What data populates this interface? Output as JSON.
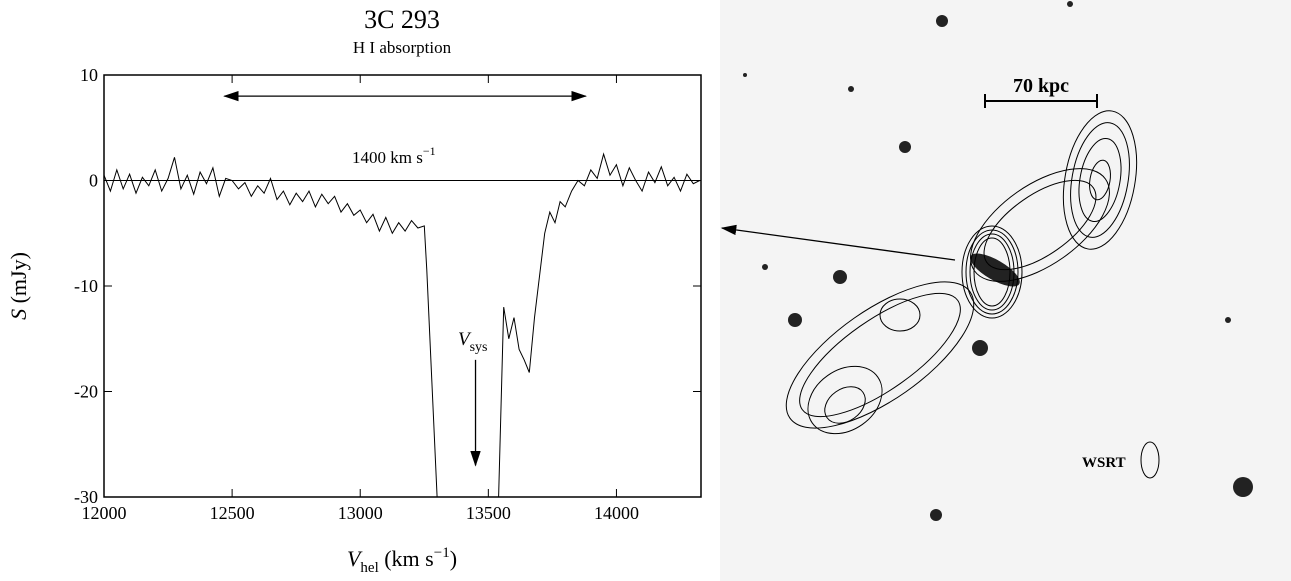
{
  "chart_data": {
    "type": "line",
    "title": "3C 293",
    "subtitle": "H I absorption",
    "y_label": {
      "main": "S",
      "rest": " (mJy)"
    },
    "x_label": {
      "main": "V",
      "sub": "hel",
      "rest": " (km s",
      "sup": "−1",
      "end": ")"
    },
    "annotations": {
      "width": {
        "main": "1400 km s",
        "sup": "−1"
      },
      "vsys": {
        "main": "V",
        "sub": "sys"
      }
    },
    "color": "#000000",
    "x": [
      12000,
      12025,
      12050,
      12075,
      12100,
      12125,
      12150,
      12175,
      12200,
      12225,
      12250,
      12275,
      12300,
      12325,
      12350,
      12375,
      12400,
      12425,
      12450,
      12475,
      12500,
      12525,
      12550,
      12575,
      12600,
      12625,
      12650,
      12675,
      12700,
      12725,
      12750,
      12775,
      12800,
      12825,
      12850,
      12875,
      12900,
      12925,
      12950,
      12975,
      13000,
      13025,
      13050,
      13075,
      13100,
      13125,
      13150,
      13175,
      13200,
      13225,
      13250,
      13260,
      13300,
      13420,
      13540,
      13560,
      13580,
      13600,
      13620,
      13640,
      13660,
      13680,
      13700,
      13720,
      13740,
      13760,
      13780,
      13800,
      13825,
      13850,
      13875,
      13900,
      13925,
      13950,
      13975,
      14000,
      14025,
      14050,
      14075,
      14100,
      14125,
      14150,
      14175,
      14200,
      14225,
      14250,
      14275,
      14300,
      14325
    ],
    "values": [
      0.5,
      -1,
      1,
      -0.8,
      0.6,
      -1.2,
      0.3,
      -0.5,
      1,
      -1,
      0.2,
      2.2,
      -0.8,
      0.5,
      -1.3,
      0.8,
      -0.3,
      1.2,
      -1.5,
      0.2,
      0,
      -0.8,
      -0.2,
      -1.5,
      -0.5,
      -1.2,
      0.2,
      -1.8,
      -1,
      -2.3,
      -1.2,
      -2,
      -1,
      -2.5,
      -1.3,
      -2.2,
      -1.5,
      -3,
      -2.2,
      -3.3,
      -2.8,
      -4,
      -3.2,
      -4.8,
      -3.5,
      -5,
      -4,
      -4.8,
      -3.8,
      -4.5,
      -4.3,
      -8.5,
      -30,
      null,
      -30,
      -12,
      -15,
      -13,
      -16,
      -17,
      -18.2,
      -13,
      -9,
      -5,
      -3,
      -4,
      -2,
      -2.5,
      -1,
      0,
      -0.5,
      1,
      0.2,
      2.5,
      0.5,
      1.5,
      -0.5,
      1.2,
      0,
      -1,
      0.8,
      -0.2,
      1.3,
      -0.5,
      0.3,
      -1,
      0.6,
      -0.3,
      0
    ],
    "xlim": [
      12000,
      14330
    ],
    "ylim": [
      -30,
      10
    ],
    "xticks": [
      12000,
      12500,
      13000,
      13500,
      14000
    ],
    "yticks": [
      -30,
      -20,
      -10,
      0,
      10
    ],
    "width_arrow": [
      12470,
      13880
    ],
    "width_arrow_y": 8,
    "vsys_arrow": {
      "x": 13450,
      "y": [
        -17,
        -27
      ]
    },
    "zero_line": 0
  },
  "image": {
    "scale_label": "70 kpc",
    "beam_label": "WSRT"
  }
}
